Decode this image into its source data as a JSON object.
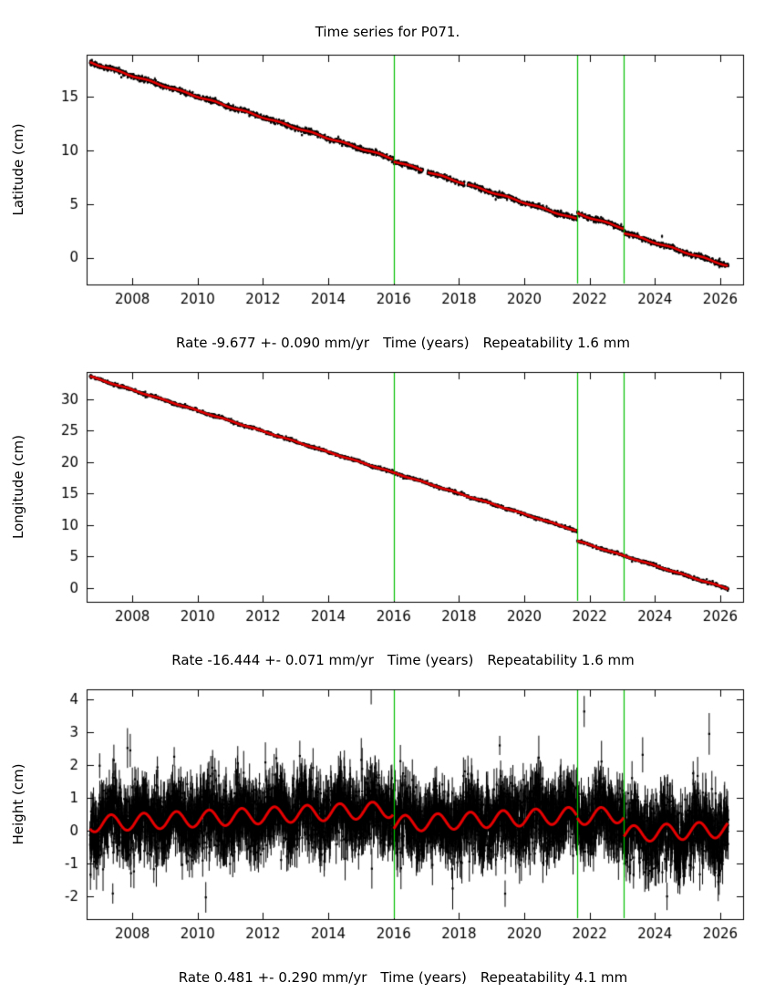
{
  "page": {
    "title": "Time series for P071."
  },
  "colors": {
    "points": "#000000",
    "model": "#e60000",
    "events": "#00c000",
    "frame": "#000000",
    "text": "#000000"
  },
  "chart_data": [
    {
      "type": "scatter",
      "ylabel": "Latitude (cm)",
      "xlabel": "Time (years)",
      "xlim": [
        2006.6,
        2026.7
      ],
      "ylim": [
        -2.5,
        18.9
      ],
      "xticks": [
        2008,
        2010,
        2012,
        2014,
        2016,
        2018,
        2020,
        2022,
        2024,
        2026
      ],
      "yticks": [
        0,
        5,
        10,
        15
      ],
      "grid": false,
      "legend": false,
      "data_start": 2006.7,
      "data_end": 2026.25,
      "trend": {
        "t0": 2006.7,
        "v0": 18.2,
        "rate_cm_per_yr": -0.9677,
        "seasonal_amp": 0.06,
        "seasonal_phase": 0.25,
        "offsets": [
          {
            "t": 2016.0,
            "dv": -0.2
          },
          {
            "t": 2021.62,
            "dv": 0.55
          },
          {
            "t": 2023.05,
            "dv": -0.4
          }
        ]
      },
      "noise_sd": 0.11,
      "error_bar": 0.13,
      "n_points": 2600,
      "outlier_frac": 0.006,
      "gaps": [
        [
          2016.9,
          2017.03
        ],
        [
          2018.18,
          2018.26
        ]
      ],
      "event_lines": [
        2016.0,
        2021.62,
        2023.05
      ],
      "model_line_width": 2.6,
      "seed": 101,
      "caption": {
        "rate": "Rate -9.677 +- 0.090 mm/yr",
        "xlabel": "Time (years)",
        "repeatability": "Repeatability 1.6 mm"
      }
    },
    {
      "type": "scatter",
      "ylabel": "Longitude (cm)",
      "xlabel": "Time (years)",
      "xlim": [
        2006.6,
        2026.7
      ],
      "ylim": [
        -2.2,
        34.3
      ],
      "xticks": [
        2008,
        2010,
        2012,
        2014,
        2016,
        2018,
        2020,
        2022,
        2024,
        2026
      ],
      "yticks": [
        0,
        5,
        10,
        15,
        20,
        25,
        30
      ],
      "grid": false,
      "legend": false,
      "data_start": 2006.7,
      "data_end": 2026.25,
      "trend": {
        "t0": 2006.7,
        "v0": 33.6,
        "rate_cm_per_yr": -1.6444,
        "seasonal_amp": 0.06,
        "seasonal_phase": 0.6,
        "offsets": [
          {
            "t": 2021.62,
            "dv": -1.6
          }
        ]
      },
      "noise_sd": 0.12,
      "error_bar": 0.13,
      "n_points": 2600,
      "outlier_frac": 0.006,
      "gaps": [],
      "event_lines": [
        2016.0,
        2021.62,
        2023.05
      ],
      "model_line_width": 2.6,
      "seed": 202,
      "caption": {
        "rate": "Rate -16.444 +- 0.071 mm/yr",
        "xlabel": "Time (years)",
        "repeatability": "Repeatability 1.6 mm"
      }
    },
    {
      "type": "scatter",
      "ylabel": "Height (cm)",
      "xlabel": "Time (years)",
      "xlim": [
        2006.6,
        2026.7
      ],
      "ylim": [
        -2.7,
        4.3
      ],
      "xticks": [
        2008,
        2010,
        2012,
        2014,
        2016,
        2018,
        2020,
        2022,
        2024,
        2026
      ],
      "yticks": [
        -2,
        -1,
        0,
        1,
        2,
        3,
        4
      ],
      "grid": false,
      "legend": false,
      "data_start": 2006.7,
      "data_end": 2026.25,
      "trend": {
        "t0": 2006.7,
        "v0": 0.2,
        "rate_cm_per_yr": 0.0481,
        "seasonal_amp": 0.25,
        "seasonal_phase": 0.1,
        "offsets": [
          {
            "t": 2016.0,
            "dv": -0.45
          },
          {
            "t": 2021.62,
            "dv": -0.05
          },
          {
            "t": 2023.05,
            "dv": -0.6
          }
        ]
      },
      "noise_sd": 0.5,
      "error_bar": 0.48,
      "n_points": 4200,
      "outlier_frac": 0.02,
      "gaps": [],
      "event_lines": [
        2016.0,
        2021.62,
        2023.05
      ],
      "model_line_width": 3,
      "seed": 303,
      "caption": {
        "rate": "Rate 0.481 +- 0.290 mm/yr",
        "xlabel": "Time (years)",
        "repeatability": "Repeatability 4.1 mm"
      }
    }
  ]
}
